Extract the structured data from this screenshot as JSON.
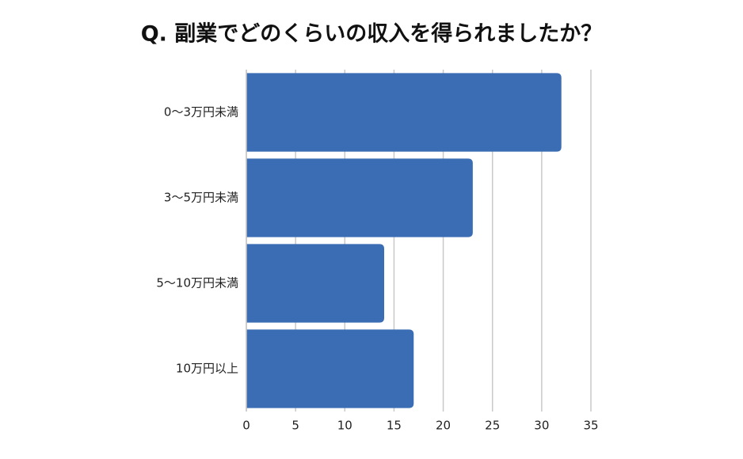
{
  "chart_data": {
    "type": "bar",
    "orientation": "horizontal",
    "title": "Q. 副業でどのくらいの収入を得られましたか？",
    "categories": [
      "0〜3万円未満",
      "3〜5万円未満",
      "5〜10万円未満",
      "10万円以上"
    ],
    "values": [
      32,
      23,
      14,
      17
    ],
    "color": "#3a6db3",
    "xlim": [
      0,
      35
    ],
    "xticks": [
      0,
      5,
      10,
      15,
      20,
      25,
      30,
      35
    ],
    "grid": true
  }
}
